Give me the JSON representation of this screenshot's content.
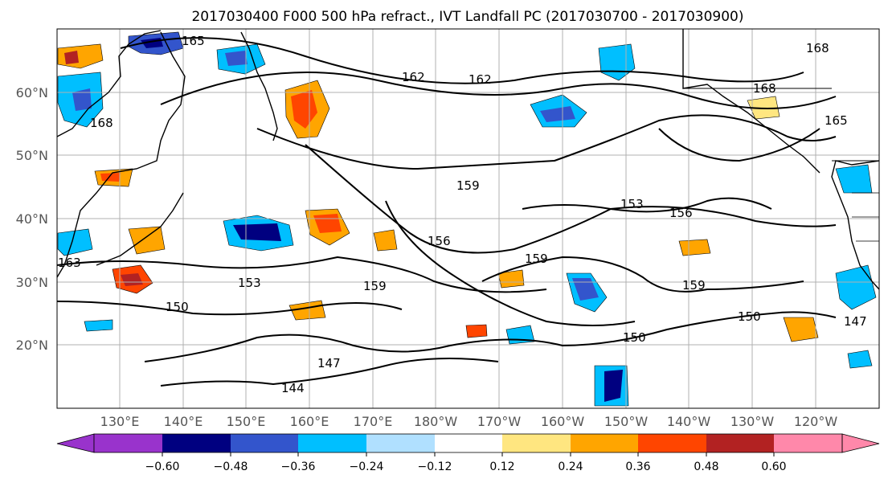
{
  "title": "2017030400 F000 500 hPa refract., IVT Landfall PC (2017030700 - 2017030900)",
  "latitude_labels": [
    "60°N",
    "50°N",
    "40°N",
    "30°N",
    "20°N"
  ],
  "longitude_labels": [
    "130°E",
    "140°E",
    "150°E",
    "160°E",
    "170°E",
    "180°W",
    "170°W",
    "160°W",
    "150°W",
    "140°W",
    "130°W",
    "120°W"
  ],
  "colorbar": {
    "tick_labels": [
      "−0.60",
      "−0.48",
      "−0.36",
      "−0.24",
      "−0.12",
      "0.12",
      "0.24",
      "0.36",
      "0.48",
      "0.60"
    ],
    "colors": [
      "#9933cc",
      "#000080",
      "#3355cc",
      "#00bfff",
      "#b0e0ff",
      "#ffffff",
      "#ffe680",
      "#ffa500",
      "#ff4500",
      "#b22222",
      "#ff88aa"
    ]
  },
  "contour_labels": [
    "165",
    "162",
    "162",
    "168",
    "168",
    "165",
    "168",
    "153",
    "156",
    "159",
    "159",
    "156",
    "159",
    "159",
    "153",
    "150",
    "150",
    "150",
    "147",
    "144",
    "147",
    "163"
  ],
  "shading_colors": {
    "dark_blue": "#000080",
    "mid_blue": "#3355cc",
    "light_blue": "#00bfff",
    "pale_blue": "#b0e0ff",
    "yellow": "#ffe680",
    "orange": "#ffa500",
    "red_orange": "#ff4500",
    "dark_red": "#b22222"
  }
}
